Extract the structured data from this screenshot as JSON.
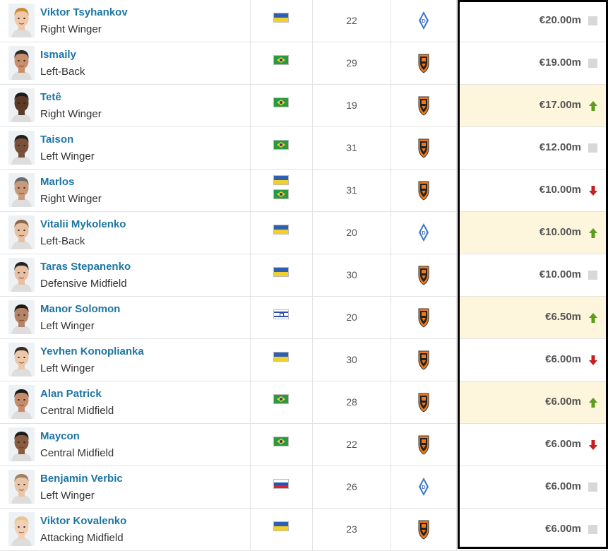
{
  "players": [
    {
      "name": "Viktor Tsyhankov",
      "position": "Right Winger",
      "flags": [
        "ua"
      ],
      "age": "22",
      "club": "dynamo",
      "value": "€20.00m",
      "trend": "neutral",
      "highlight": false
    },
    {
      "name": "Ismaily",
      "position": "Left-Back",
      "flags": [
        "br"
      ],
      "age": "29",
      "club": "shakhtar",
      "value": "€19.00m",
      "trend": "neutral",
      "highlight": false
    },
    {
      "name": "Tetê",
      "position": "Right Winger",
      "flags": [
        "br"
      ],
      "age": "19",
      "club": "shakhtar",
      "value": "€17.00m",
      "trend": "up",
      "highlight": true
    },
    {
      "name": "Taison",
      "position": "Left Winger",
      "flags": [
        "br"
      ],
      "age": "31",
      "club": "shakhtar",
      "value": "€12.00m",
      "trend": "neutral",
      "highlight": false
    },
    {
      "name": "Marlos",
      "position": "Right Winger",
      "flags": [
        "ua",
        "br"
      ],
      "age": "31",
      "club": "shakhtar",
      "value": "€10.00m",
      "trend": "down",
      "highlight": false
    },
    {
      "name": "Vitalii Mykolenko",
      "position": "Left-Back",
      "flags": [
        "ua"
      ],
      "age": "20",
      "club": "dynamo",
      "value": "€10.00m",
      "trend": "up",
      "highlight": true
    },
    {
      "name": "Taras Stepanenko",
      "position": "Defensive Midfield",
      "flags": [
        "ua"
      ],
      "age": "30",
      "club": "shakhtar",
      "value": "€10.00m",
      "trend": "neutral",
      "highlight": false
    },
    {
      "name": "Manor Solomon",
      "position": "Left Winger",
      "flags": [
        "il"
      ],
      "age": "20",
      "club": "shakhtar",
      "value": "€6.50m",
      "trend": "up",
      "highlight": true
    },
    {
      "name": "Yevhen Konoplianka",
      "position": "Left Winger",
      "flags": [
        "ua"
      ],
      "age": "30",
      "club": "shakhtar",
      "value": "€6.00m",
      "trend": "down",
      "highlight": false
    },
    {
      "name": "Alan Patrick",
      "position": "Central Midfield",
      "flags": [
        "br"
      ],
      "age": "28",
      "club": "shakhtar",
      "value": "€6.00m",
      "trend": "up",
      "highlight": true
    },
    {
      "name": "Maycon",
      "position": "Central Midfield",
      "flags": [
        "br"
      ],
      "age": "22",
      "club": "shakhtar",
      "value": "€6.00m",
      "trend": "down",
      "highlight": false
    },
    {
      "name": "Benjamin Verbic",
      "position": "Left Winger",
      "flags": [
        "si"
      ],
      "age": "26",
      "club": "dynamo",
      "value": "€6.00m",
      "trend": "neutral",
      "highlight": false
    },
    {
      "name": "Viktor Kovalenko",
      "position": "Attacking Midfield",
      "flags": [
        "ua"
      ],
      "age": "23",
      "club": "shakhtar",
      "value": "€6.00m",
      "trend": "neutral",
      "highlight": false
    }
  ],
  "colors": {
    "link": "#1d75a3",
    "highlight": "#fdf5dc",
    "up": "#5a9e1c",
    "down": "#c81e1e",
    "neutral": "#d8d8d8"
  }
}
